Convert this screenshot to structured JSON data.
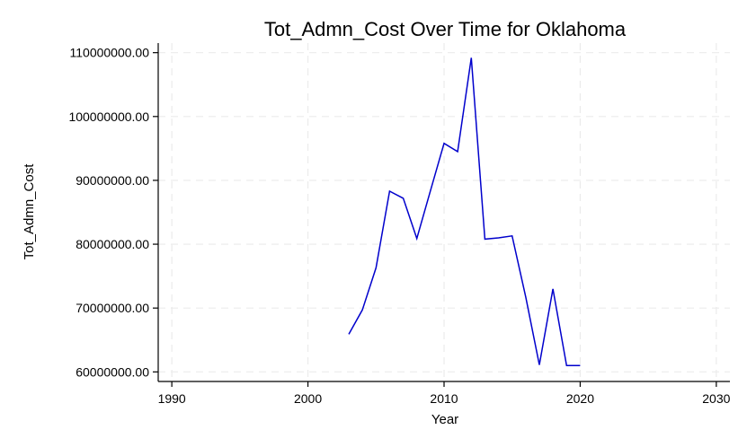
{
  "chart_data": {
    "type": "line",
    "title": "Tot_Admn_Cost Over Time for Oklahoma",
    "xlabel": "Year",
    "ylabel": "Tot_Admn_Cost",
    "xlim": [
      1989,
      2031
    ],
    "ylim": [
      58500000,
      111500000
    ],
    "xticks": [
      1990,
      2000,
      2010,
      2020,
      2030
    ],
    "xtick_labels": [
      "1990",
      "2000",
      "2010",
      "2020",
      "2030"
    ],
    "yticks": [
      60000000,
      70000000,
      80000000,
      90000000,
      100000000,
      110000000
    ],
    "ytick_labels": [
      "60000000.00",
      "70000000.00",
      "80000000.00",
      "90000000.00",
      "100000000.00",
      "110000000.00"
    ],
    "grid": true,
    "line_color": "#0000cc",
    "series": [
      {
        "x": [
          2003,
          2004,
          2005,
          2006,
          2007,
          2008,
          2009,
          2010,
          2011,
          2012,
          2013,
          2014,
          2015,
          2016,
          2017,
          2018,
          2019,
          2020
        ],
        "values": [
          65900000,
          69700000,
          76300000,
          88300000,
          87200000,
          80900000,
          88400000,
          95800000,
          94500000,
          109200000,
          80800000,
          81000000,
          81300000,
          71700000,
          61100000,
          73000000,
          61000000,
          61000000
        ]
      }
    ]
  }
}
